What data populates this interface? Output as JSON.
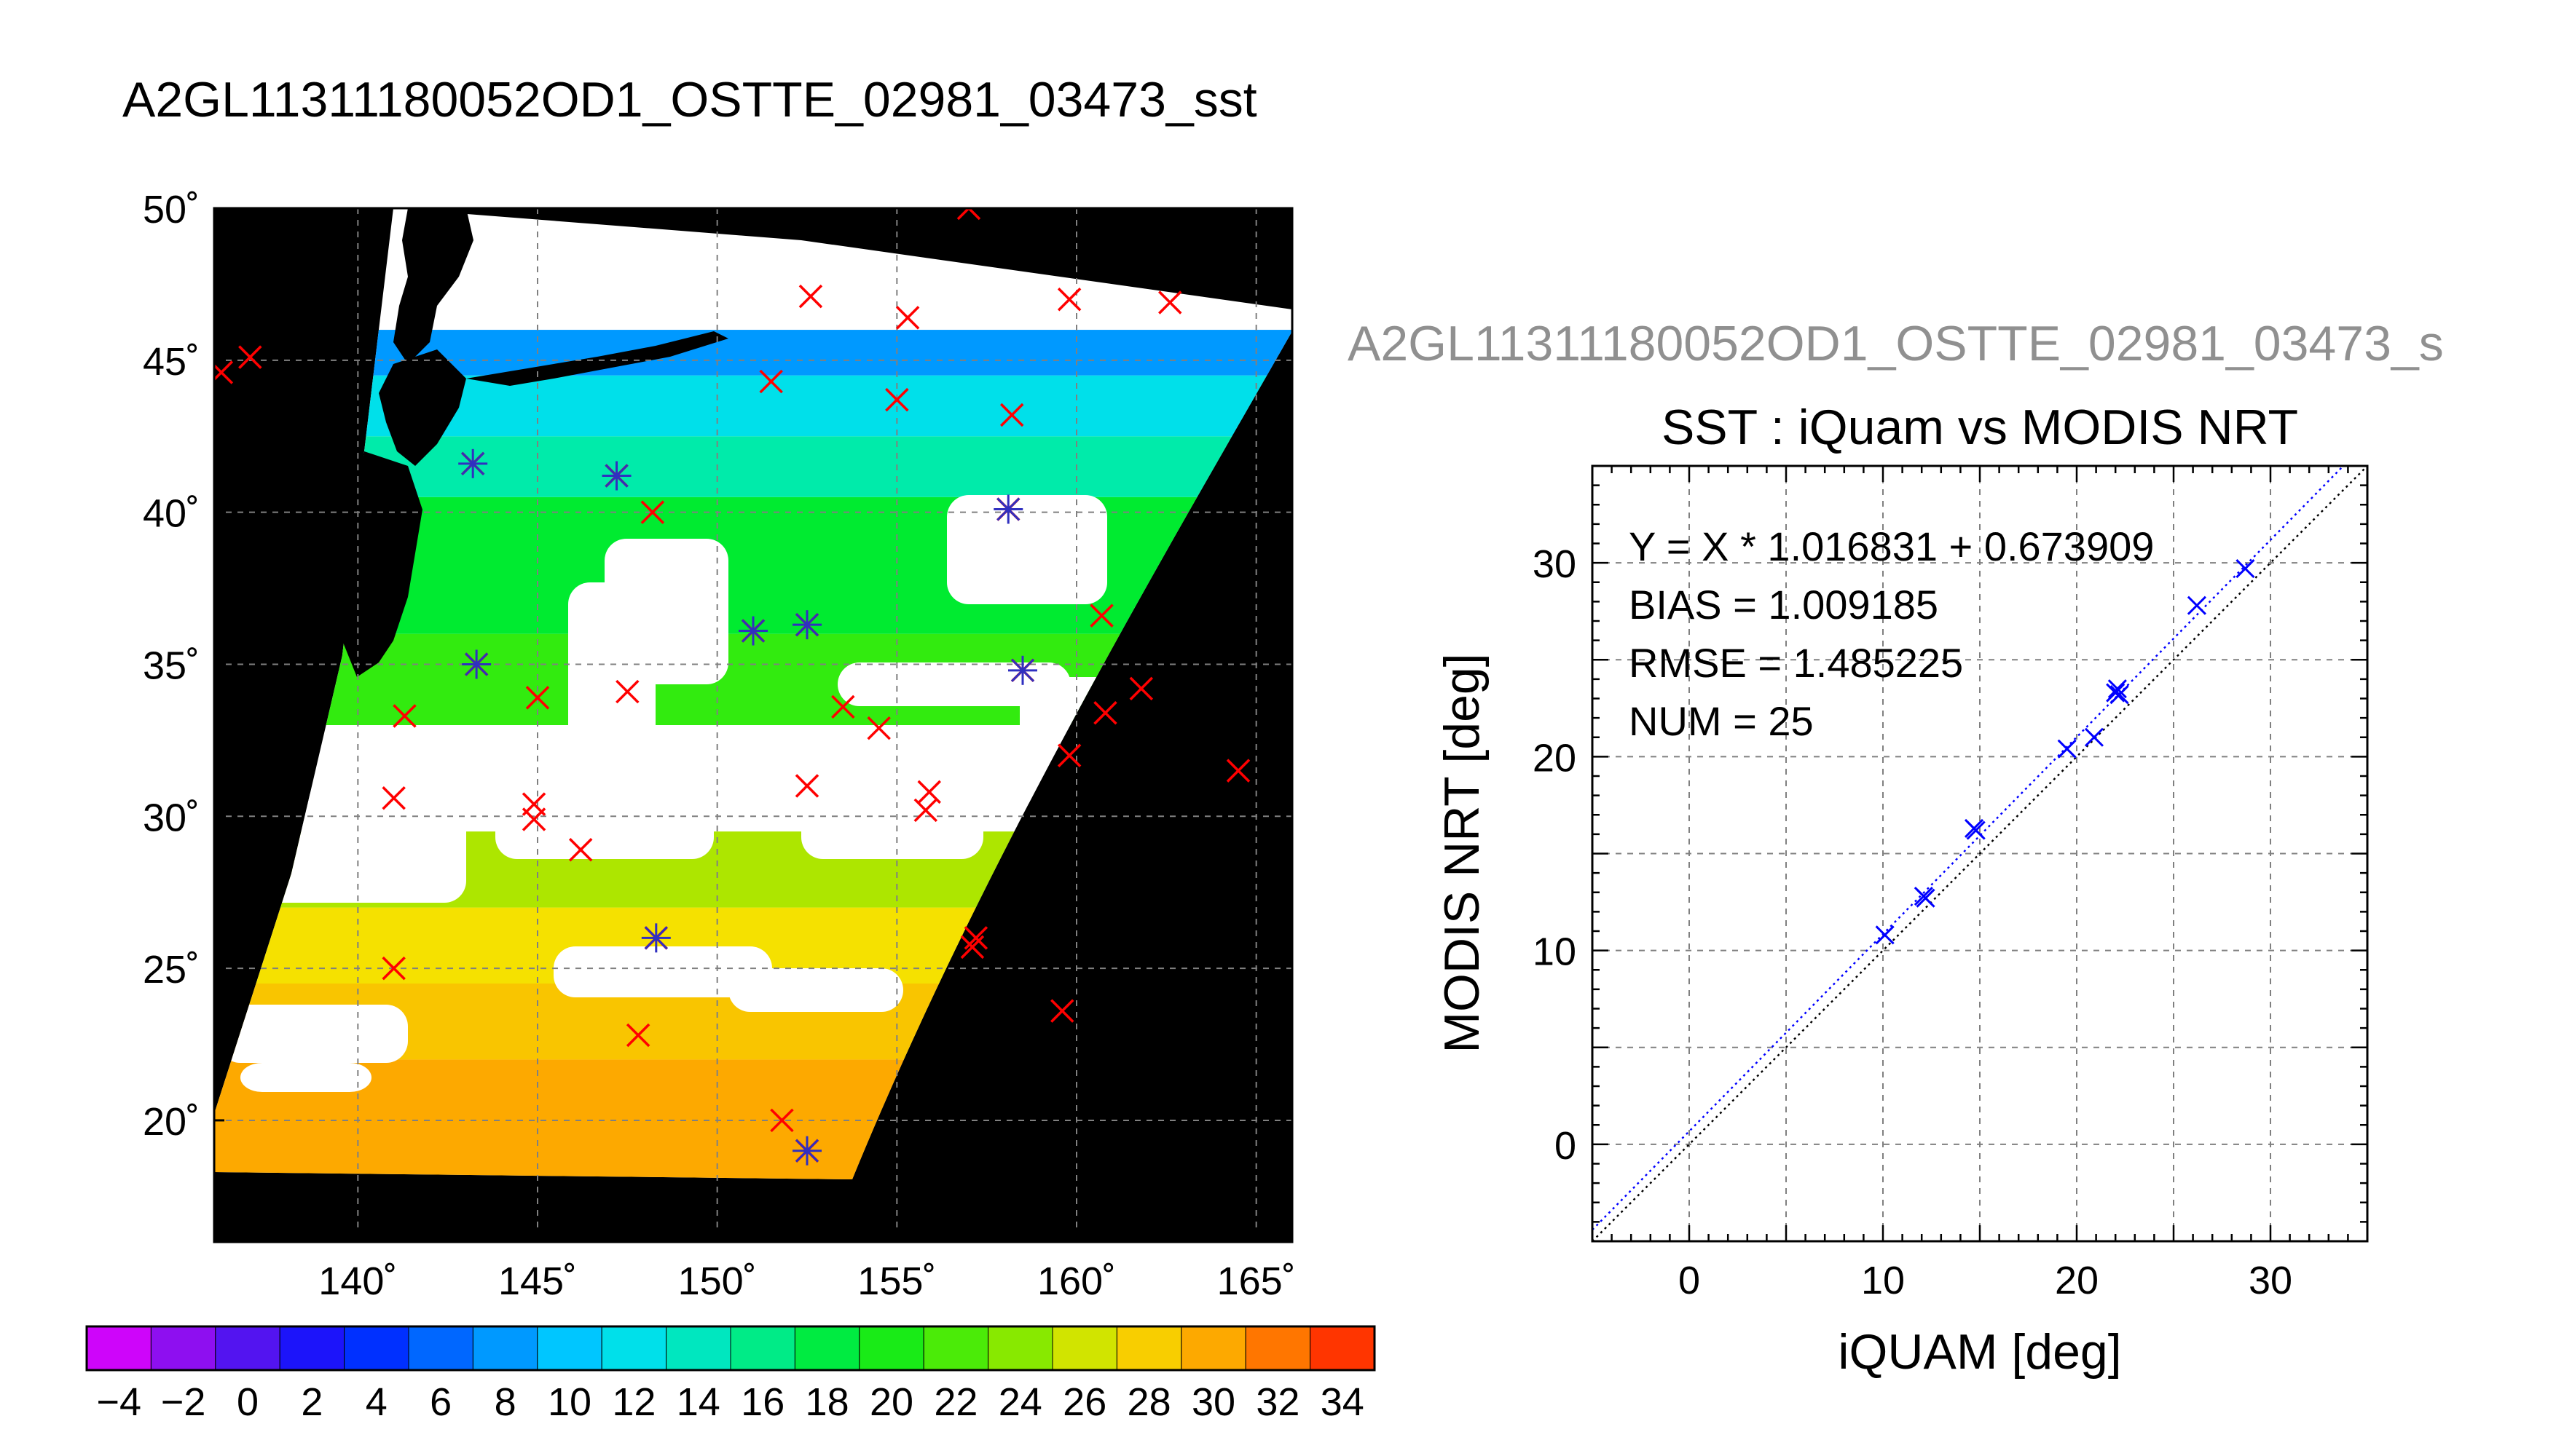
{
  "page": {
    "title": "A2GL11311180052OD1_OSTTE_02981_03473_sst",
    "scatter_header": "A2GL11311180052OD1_OSTTE_02981_03473_s"
  },
  "colors": {
    "background": "#ffffff",
    "land": "#000000",
    "cloud": "#ffffff",
    "grid": "#808080",
    "iquam_marker": "#ff0000",
    "matched_marker": "#3030c0",
    "fit_line": "#0000ff",
    "identity_line": "#000000",
    "header_gray": "#909090"
  },
  "chart_data": [
    {
      "type": "map",
      "title": "A2GL11311180052OD1_OSTTE_02981_03473_sst",
      "xlim": [
        136,
        166
      ],
      "ylim": [
        16,
        50
      ],
      "x_ticks": [
        140,
        145,
        150,
        155,
        160,
        165
      ],
      "y_ticks": [
        20,
        25,
        30,
        35,
        40,
        45,
        50
      ],
      "x_tick_labels": [
        "140˚",
        "145˚",
        "150˚",
        "155˚",
        "160˚",
        "165˚"
      ],
      "y_tick_labels": [
        "20˚",
        "25˚",
        "30˚",
        "35˚",
        "40˚",
        "45˚",
        "50˚"
      ],
      "grid": true,
      "sst_bands": [
        {
          "lat": [
            16,
            22
          ],
          "sst": 30
        },
        {
          "lat": [
            22,
            24.5
          ],
          "sst": 28.5
        },
        {
          "lat": [
            24.5,
            27
          ],
          "sst": 27
        },
        {
          "lat": [
            27,
            29.5
          ],
          "sst": 25
        },
        {
          "lat": [
            33,
            36
          ],
          "sst": 21
        },
        {
          "lat": [
            36,
            40.5
          ],
          "sst": 18.5
        },
        {
          "lat": [
            40.5,
            42.5
          ],
          "sst": 15
        },
        {
          "lat": [
            42.5,
            44.5
          ],
          "sst": 12
        },
        {
          "lat": [
            44.5,
            46
          ],
          "sst": 8
        }
      ],
      "iquam_points": [
        {
          "lon": 136.2,
          "lat": 44.6
        },
        {
          "lon": 137.0,
          "lat": 45.1
        },
        {
          "lon": 143.2,
          "lat": 41.6
        },
        {
          "lon": 147.2,
          "lat": 41.2
        },
        {
          "lon": 148.2,
          "lat": 40.0
        },
        {
          "lon": 151.5,
          "lat": 44.3
        },
        {
          "lon": 152.6,
          "lat": 47.1
        },
        {
          "lon": 155.3,
          "lat": 46.4
        },
        {
          "lon": 155.0,
          "lat": 43.7
        },
        {
          "lon": 157.0,
          "lat": 50.0
        },
        {
          "lon": 158.2,
          "lat": 43.2
        },
        {
          "lon": 159.8,
          "lat": 47.0
        },
        {
          "lon": 162.6,
          "lat": 46.9
        },
        {
          "lon": 158.1,
          "lat": 40.1
        },
        {
          "lon": 143.3,
          "lat": 35.0
        },
        {
          "lon": 141.3,
          "lat": 33.3
        },
        {
          "lon": 145.0,
          "lat": 33.9
        },
        {
          "lon": 147.5,
          "lat": 34.1
        },
        {
          "lon": 151.0,
          "lat": 36.1
        },
        {
          "lon": 152.5,
          "lat": 36.3
        },
        {
          "lon": 153.5,
          "lat": 33.6
        },
        {
          "lon": 154.5,
          "lat": 32.9
        },
        {
          "lon": 158.5,
          "lat": 34.8
        },
        {
          "lon": 160.7,
          "lat": 36.6
        },
        {
          "lon": 161.8,
          "lat": 34.2
        },
        {
          "lon": 160.8,
          "lat": 33.4
        },
        {
          "lon": 159.8,
          "lat": 32.0
        },
        {
          "lon": 164.5,
          "lat": 31.5
        },
        {
          "lon": 141.0,
          "lat": 30.6
        },
        {
          "lon": 144.9,
          "lat": 30.4
        },
        {
          "lon": 144.9,
          "lat": 29.9
        },
        {
          "lon": 146.2,
          "lat": 28.9
        },
        {
          "lon": 152.5,
          "lat": 31.0
        },
        {
          "lon": 155.9,
          "lat": 30.8
        },
        {
          "lon": 155.8,
          "lat": 30.2
        },
        {
          "lon": 141.0,
          "lat": 25.0
        },
        {
          "lon": 148.3,
          "lat": 26.0
        },
        {
          "lon": 157.2,
          "lat": 26.0
        },
        {
          "lon": 157.1,
          "lat": 25.7
        },
        {
          "lon": 147.8,
          "lat": 22.8
        },
        {
          "lon": 159.6,
          "lat": 23.6
        },
        {
          "lon": 151.8,
          "lat": 20.0
        },
        {
          "lon": 152.5,
          "lat": 19.0
        }
      ],
      "matched_points": [
        {
          "lon": 143.2,
          "lat": 41.6
        },
        {
          "lon": 147.2,
          "lat": 41.2
        },
        {
          "lon": 158.1,
          "lat": 40.1
        },
        {
          "lon": 143.3,
          "lat": 35.0
        },
        {
          "lon": 151.0,
          "lat": 36.1
        },
        {
          "lon": 152.5,
          "lat": 36.3
        },
        {
          "lon": 158.5,
          "lat": 34.8
        },
        {
          "lon": 148.3,
          "lat": 26.0
        },
        {
          "lon": 152.5,
          "lat": 19.0
        }
      ]
    },
    {
      "type": "colorbar",
      "range": [
        -5,
        35
      ],
      "step": 2,
      "tick_labels": [
        "−4",
        "−2",
        "0",
        "2",
        "4",
        "6",
        "8",
        "10",
        "12",
        "14",
        "16",
        "18",
        "20",
        "22",
        "24",
        "26",
        "28",
        "30",
        "32",
        "34"
      ],
      "tick_values": [
        -4,
        -2,
        0,
        2,
        4,
        6,
        8,
        10,
        12,
        14,
        16,
        18,
        20,
        22,
        24,
        26,
        28,
        30,
        32,
        34
      ]
    },
    {
      "type": "scatter",
      "title": "SST : iQuam vs MODIS NRT",
      "xlabel": "iQUAM [deg]",
      "ylabel": "MODIS NRT [deg]",
      "xlim": [
        -5,
        35
      ],
      "ylim": [
        -5,
        35
      ],
      "x_ticks": [
        0,
        10,
        20,
        30
      ],
      "y_ticks": [
        0,
        10,
        20,
        30
      ],
      "grid": true,
      "fit": {
        "slope": 1.016831,
        "intercept": 0.673909
      },
      "stats": [
        "Y = X * 1.016831 + 0.673909",
        "BIAS = 1.009185",
        "RMSE = 1.485225",
        "NUM = 25"
      ],
      "points": [
        {
          "x": 10.1,
          "y": 10.8
        },
        {
          "x": 12.1,
          "y": 12.8
        },
        {
          "x": 12.2,
          "y": 12.7
        },
        {
          "x": 14.7,
          "y": 16.3
        },
        {
          "x": 14.8,
          "y": 16.2
        },
        {
          "x": 19.5,
          "y": 20.4
        },
        {
          "x": 20.9,
          "y": 21.0
        },
        {
          "x": 22.0,
          "y": 23.3
        },
        {
          "x": 22.1,
          "y": 23.5
        },
        {
          "x": 22.2,
          "y": 23.2
        },
        {
          "x": 26.2,
          "y": 27.8
        },
        {
          "x": 28.7,
          "y": 29.7
        }
      ]
    }
  ]
}
